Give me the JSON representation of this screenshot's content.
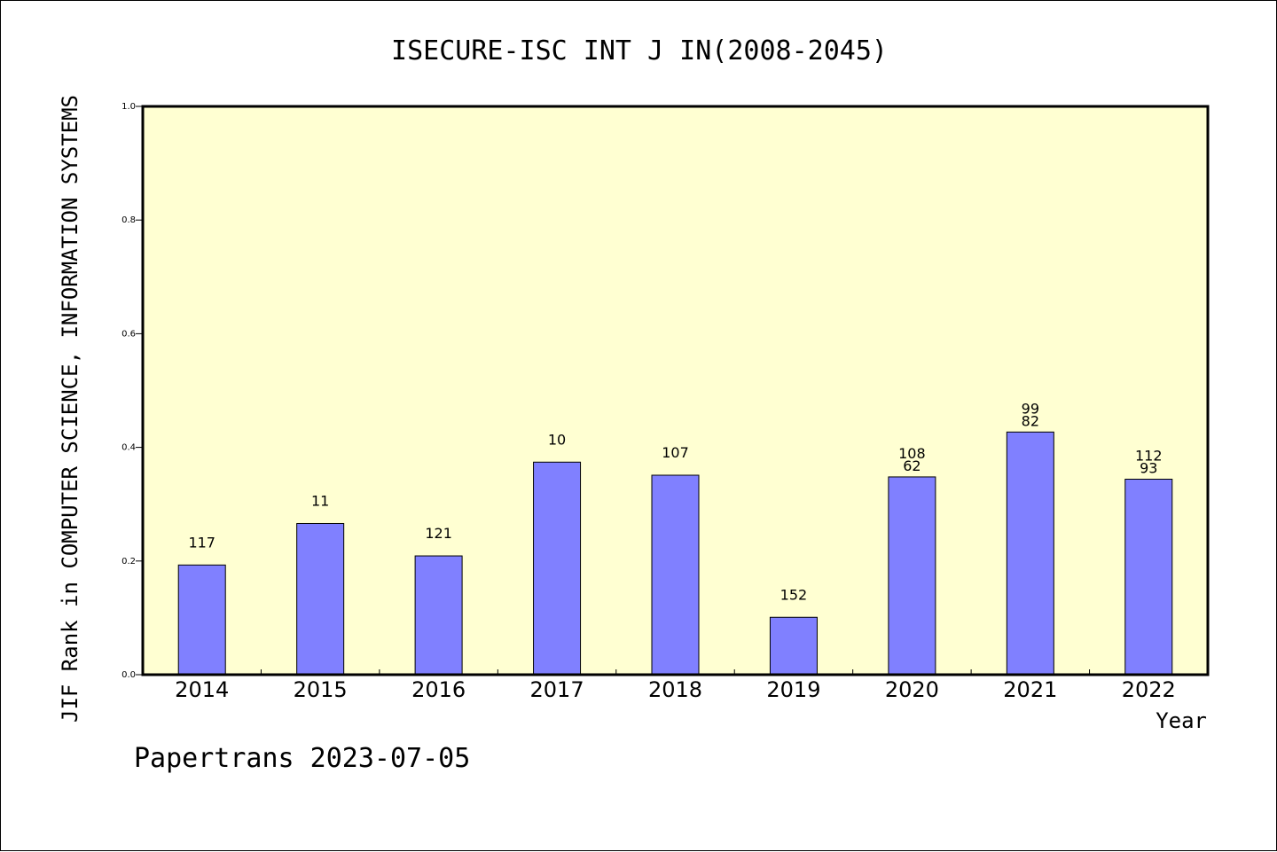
{
  "chart_data": {
    "type": "bar",
    "title": "ISECURE-ISC INT J IN(2008-2045)",
    "xlabel": "Year",
    "ylabel": "JIF Rank in COMPUTER SCIENCE, INFORMATION SYSTEMS",
    "ylim": [
      0.0,
      1.0
    ],
    "yticks": [
      "0.0",
      "0.2",
      "0.4",
      "0.6",
      "0.8",
      "1.0"
    ],
    "categories": [
      "2014",
      "2015",
      "2016",
      "2017",
      "2018",
      "2019",
      "2020",
      "2021",
      "2022"
    ],
    "values": [
      0.193,
      0.266,
      0.209,
      0.374,
      0.351,
      0.101,
      0.348,
      0.427,
      0.344
    ],
    "bar_labels": [
      [
        "117"
      ],
      [
        "11"
      ],
      [
        "121"
      ],
      [
        "10"
      ],
      [
        "107"
      ],
      [
        "152"
      ],
      [
        "108",
        "62"
      ],
      [
        "99",
        "82"
      ],
      [
        "112",
        "93"
      ]
    ],
    "grid": false,
    "colors": {
      "bar_fill": "#8080ff",
      "plot_background": "#ffffd2",
      "axis": "#000000"
    }
  },
  "footer": "Papertrans 2023-07-05"
}
